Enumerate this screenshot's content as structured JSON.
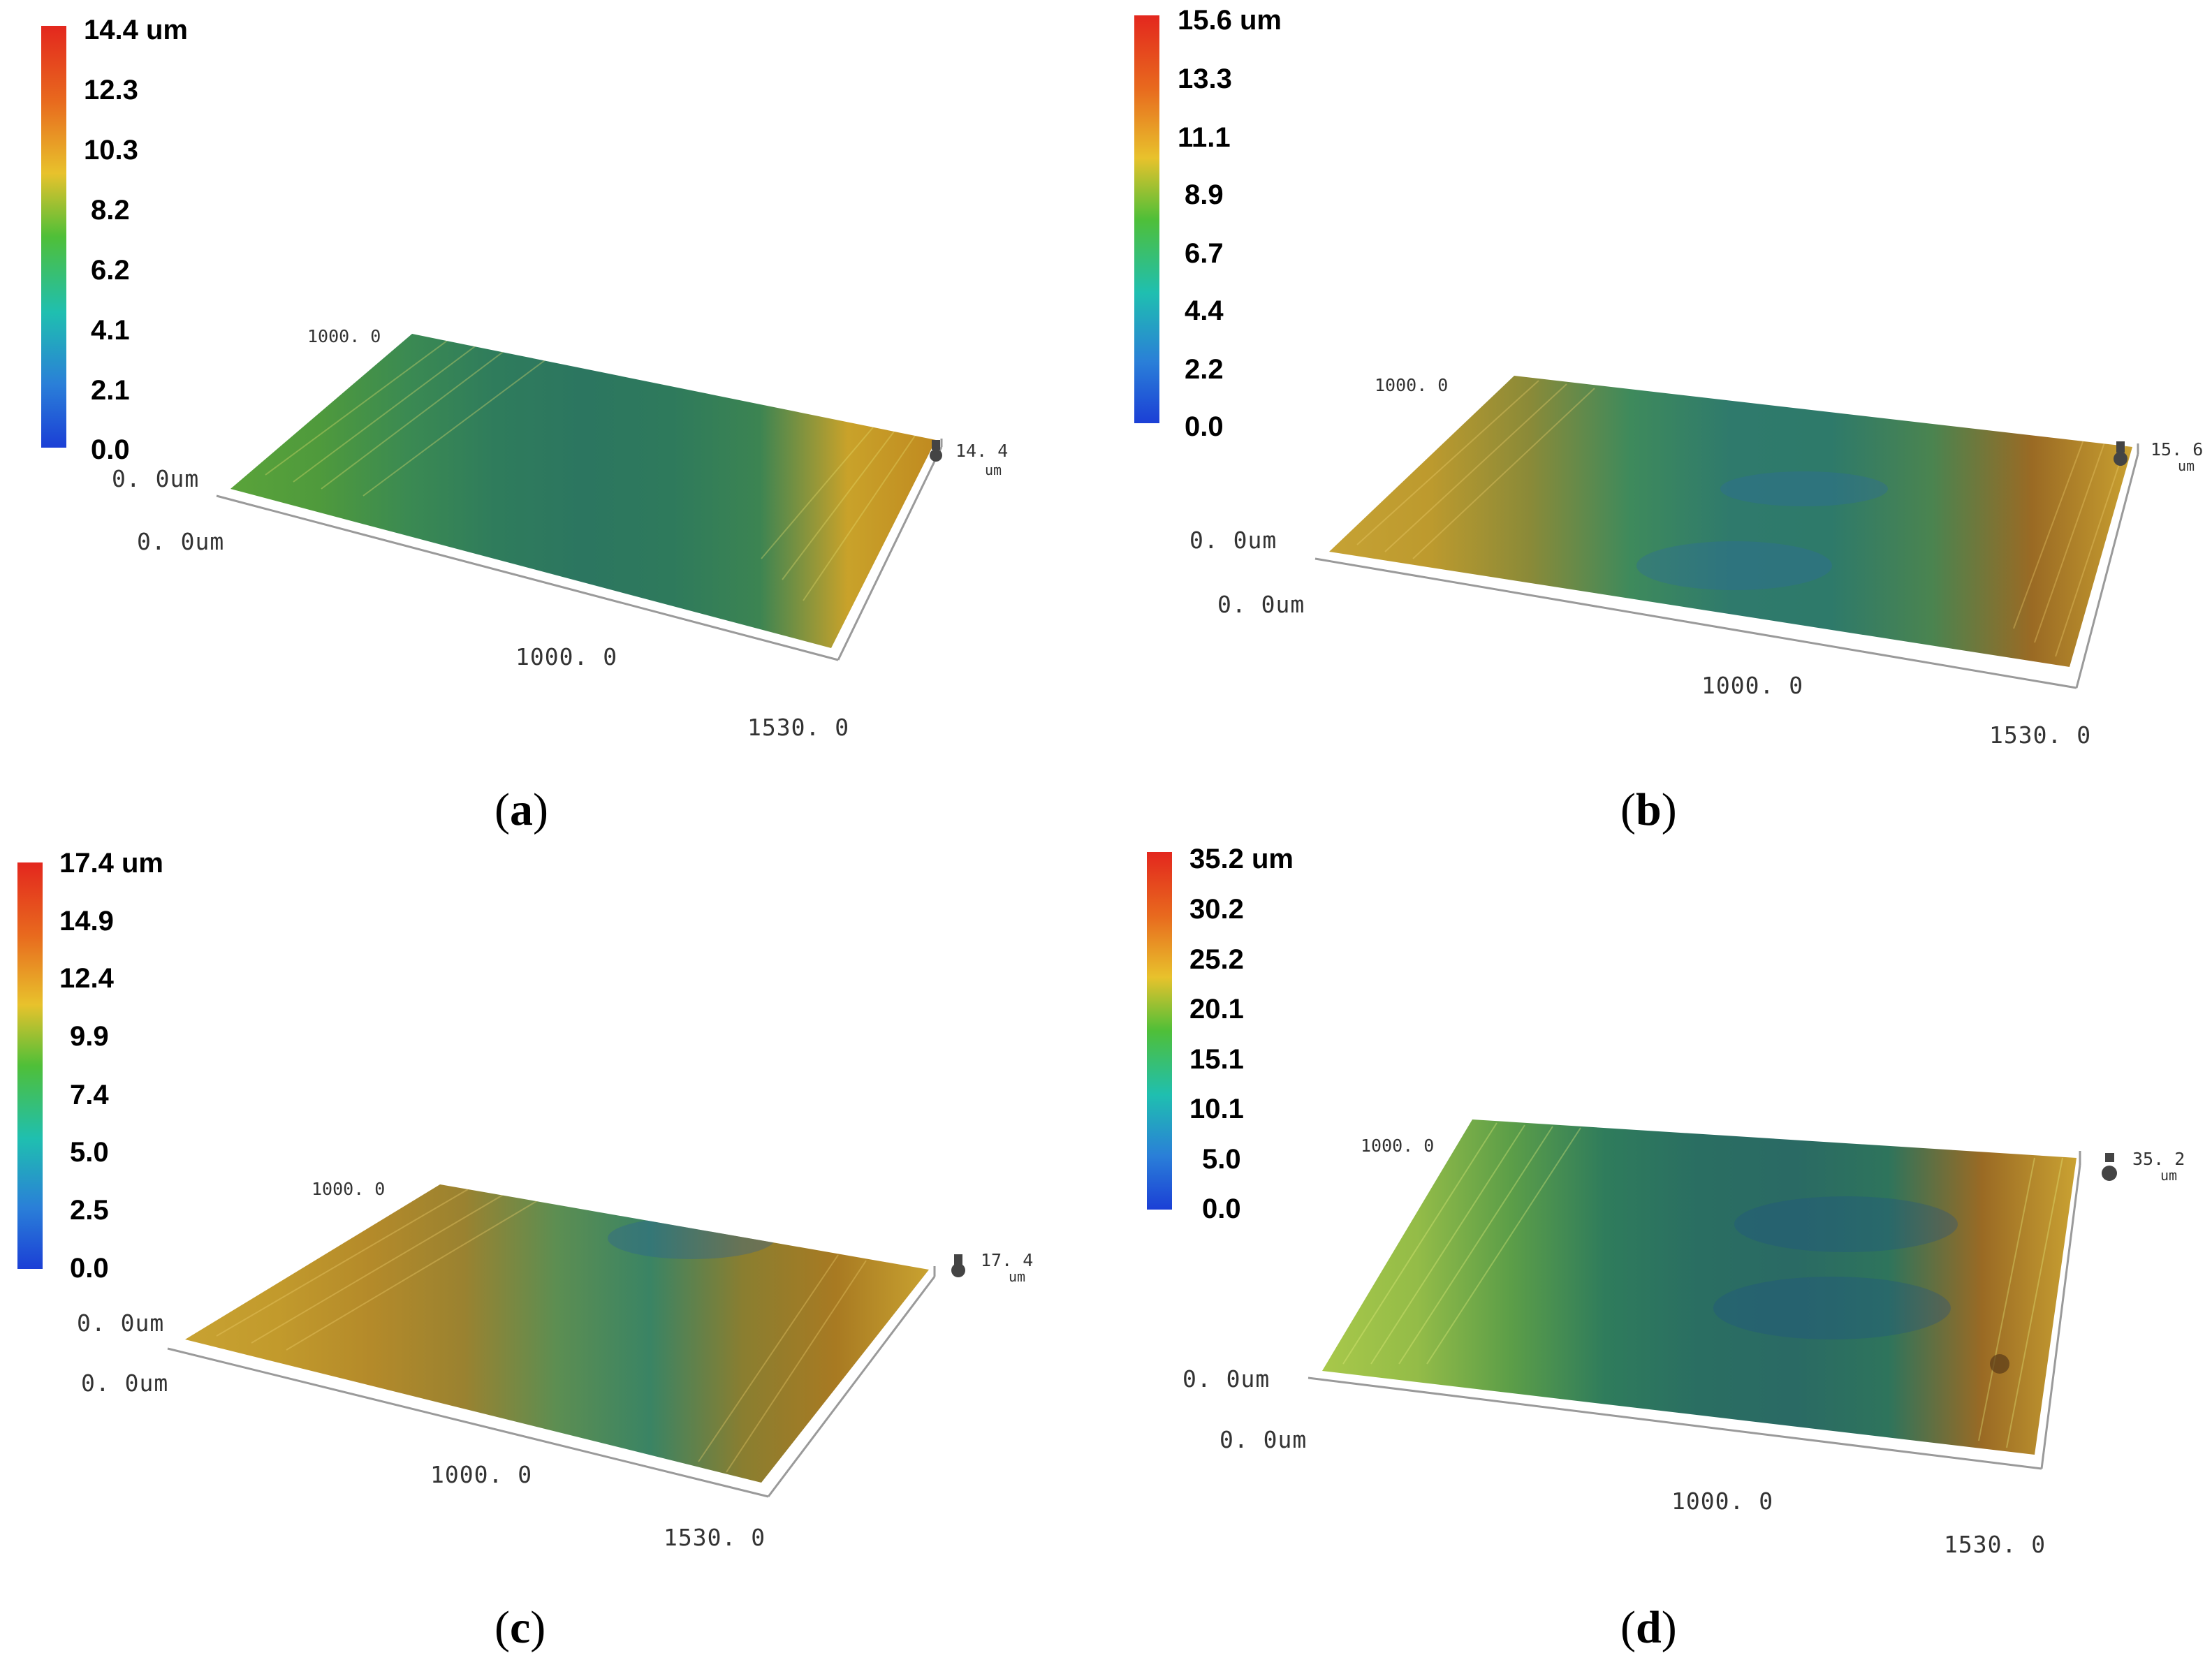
{
  "panels": [
    {
      "caption": "a",
      "colorbar": {
        "ticks": [
          "14.4 um",
          "12.3",
          "10.3",
          "8.2",
          "6.2",
          "4.1",
          "2.1",
          "0.0"
        ]
      },
      "axes": {
        "y_far": "1000. 0",
        "origin_top": "0. 0um",
        "origin_bottom": "0. 0um",
        "x_mid": "1000. 0",
        "x_end": "1530. 0",
        "z_val": "14. 4",
        "z_unit": "um"
      }
    },
    {
      "caption": "b",
      "colorbar": {
        "ticks": [
          "15.6 um",
          "13.3",
          "11.1",
          "8.9",
          "6.7",
          "4.4",
          "2.2",
          "0.0"
        ]
      },
      "axes": {
        "y_far": "1000. 0",
        "origin_top": "0. 0um",
        "origin_bottom": "0. 0um",
        "x_mid": "1000. 0",
        "x_end": "1530. 0",
        "z_val": "15. 6",
        "z_unit": "um"
      }
    },
    {
      "caption": "c",
      "colorbar": {
        "ticks": [
          "17.4 um",
          "14.9",
          "12.4",
          "9.9",
          "7.4",
          "5.0",
          "2.5",
          "0.0"
        ]
      },
      "axes": {
        "y_far": "1000. 0",
        "origin_top": "0. 0um",
        "origin_bottom": "0. 0um",
        "x_mid": "1000. 0",
        "x_end": "1530. 0",
        "z_val": "17. 4",
        "z_unit": "um"
      }
    },
    {
      "caption": "d",
      "colorbar": {
        "ticks": [
          "35.2 um",
          "30.2",
          "25.2",
          "20.1",
          "15.1",
          "10.1",
          "5.0",
          "0.0"
        ]
      },
      "axes": {
        "y_far": "1000. 0",
        "origin_top": "0. 0um",
        "origin_bottom": "0. 0um",
        "x_mid": "1000. 0",
        "x_end": "1530. 0",
        "z_val": "35. 2",
        "z_unit": "um"
      }
    }
  ],
  "colors": {
    "surface_profiles": [
      [
        "#5aa33a",
        "#4f9a3c",
        "#3b8a52",
        "#2f7c5c",
        "#2c7660",
        "#2e7a5c",
        "#3c8452",
        "#c9a22a",
        "#c08a20"
      ],
      [
        "#c6a234",
        "#bd9a2e",
        "#8a8a38",
        "#3e8a5c",
        "#2f7a6c",
        "#2e7a6a",
        "#4a8450",
        "#9a6a24",
        "#c9a030"
      ],
      [
        "#c8a232",
        "#c29a2c",
        "#b48a2a",
        "#9a8230",
        "#5c8e52",
        "#3a8464",
        "#8a7e30",
        "#a87a22",
        "#c9a230"
      ],
      [
        "#a8c84a",
        "#94bc48",
        "#5c9e48",
        "#2f7c5c",
        "#2a6e62",
        "#2a6a64",
        "#2e745c",
        "#9a6a24",
        "#caa232"
      ]
    ]
  }
}
